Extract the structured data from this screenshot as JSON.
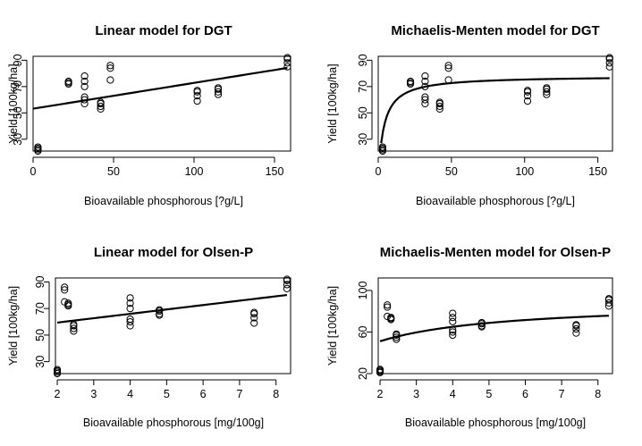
{
  "chart_data": [
    {
      "type": "scatter",
      "title": "Linear model for DGT",
      "xlabel": "Bioavailable phosphorous [?g/L]",
      "ylabel": "Yield [100kg/ha]",
      "xlim": [
        0,
        160
      ],
      "ylim": [
        21,
        93
      ],
      "xticks": [
        0,
        50,
        100,
        150
      ],
      "yticks": [
        30,
        50,
        70,
        90
      ],
      "points": [
        [
          3,
          21
        ],
        [
          3,
          22
        ],
        [
          3,
          23
        ],
        [
          3,
          24
        ],
        [
          22,
          72
        ],
        [
          22,
          73
        ],
        [
          22,
          74
        ],
        [
          32,
          57
        ],
        [
          32,
          60
        ],
        [
          32,
          62
        ],
        [
          32,
          70
        ],
        [
          32,
          74
        ],
        [
          32,
          78
        ],
        [
          42,
          53
        ],
        [
          42,
          55
        ],
        [
          42,
          57
        ],
        [
          42,
          58
        ],
        [
          48,
          75
        ],
        [
          48,
          84
        ],
        [
          48,
          86
        ],
        [
          102,
          59
        ],
        [
          102,
          63
        ],
        [
          102,
          66
        ],
        [
          102,
          67
        ],
        [
          115,
          64
        ],
        [
          115,
          66
        ],
        [
          115,
          68
        ],
        [
          115,
          69
        ],
        [
          158,
          85
        ],
        [
          158,
          88
        ],
        [
          158,
          91
        ],
        [
          158,
          92
        ]
      ],
      "fit": {
        "model": "linear",
        "intercept": 53.2,
        "slope": 0.196,
        "x_range": [
          0,
          158
        ]
      }
    },
    {
      "type": "scatter",
      "title": "Michaelis-Menten model for DGT",
      "xlabel": "Bioavailable phosphorous [?g/L]",
      "ylabel": "Yield [100kg/ha]",
      "xlim": [
        0,
        160
      ],
      "ylim": [
        21,
        93
      ],
      "xticks": [
        0,
        50,
        100,
        150
      ],
      "yticks": [
        30,
        50,
        70,
        90
      ],
      "points": [
        [
          3,
          21
        ],
        [
          3,
          22
        ],
        [
          3,
          23
        ],
        [
          3,
          24
        ],
        [
          22,
          72
        ],
        [
          22,
          73
        ],
        [
          22,
          74
        ],
        [
          32,
          57
        ],
        [
          32,
          60
        ],
        [
          32,
          62
        ],
        [
          32,
          70
        ],
        [
          32,
          74
        ],
        [
          32,
          78
        ],
        [
          42,
          53
        ],
        [
          42,
          55
        ],
        [
          42,
          57
        ],
        [
          42,
          58
        ],
        [
          48,
          75
        ],
        [
          48,
          84
        ],
        [
          48,
          86
        ],
        [
          102,
          59
        ],
        [
          102,
          63
        ],
        [
          102,
          66
        ],
        [
          102,
          67
        ],
        [
          115,
          64
        ],
        [
          115,
          66
        ],
        [
          115,
          68
        ],
        [
          115,
          69
        ],
        [
          158,
          85
        ],
        [
          158,
          88
        ],
        [
          158,
          91
        ],
        [
          158,
          92
        ]
      ],
      "fit": {
        "model": "michaelis-menten",
        "vmax": 78.2,
        "k": 3.8,
        "x_range": [
          2,
          158
        ]
      }
    },
    {
      "type": "scatter",
      "title": "Linear model for Olsen-P",
      "xlabel": "Bioavailable phosphorous [mg/100g]",
      "ylabel": "Yield [100kg/ha]",
      "xlim": [
        1.95,
        8.4
      ],
      "ylim": [
        21,
        93
      ],
      "xticks": [
        2,
        3,
        4,
        5,
        6,
        7,
        8
      ],
      "yticks": [
        30,
        50,
        70,
        90
      ],
      "points": [
        [
          2,
          21
        ],
        [
          2,
          22
        ],
        [
          2,
          23
        ],
        [
          2,
          24
        ],
        [
          2.2,
          84
        ],
        [
          2.2,
          86
        ],
        [
          2.2,
          75
        ],
        [
          2.3,
          72
        ],
        [
          2.3,
          73
        ],
        [
          2.3,
          74
        ],
        [
          2.45,
          53
        ],
        [
          2.45,
          55
        ],
        [
          2.45,
          57
        ],
        [
          2.45,
          58
        ],
        [
          4,
          57
        ],
        [
          4,
          60
        ],
        [
          4,
          62
        ],
        [
          4,
          70
        ],
        [
          4,
          74
        ],
        [
          4,
          78
        ],
        [
          4.8,
          65
        ],
        [
          4.8,
          66
        ],
        [
          4.8,
          68
        ],
        [
          4.8,
          69
        ],
        [
          7.4,
          59
        ],
        [
          7.4,
          63
        ],
        [
          7.4,
          66
        ],
        [
          7.4,
          67
        ],
        [
          8.3,
          85
        ],
        [
          8.3,
          88
        ],
        [
          8.3,
          91
        ],
        [
          8.3,
          92
        ]
      ],
      "fit": {
        "model": "linear",
        "intercept": 52.8,
        "slope": 3.3,
        "x_range": [
          2,
          8.3
        ]
      }
    },
    {
      "type": "scatter",
      "title": "Michaelis-Menten model for Olsen-P",
      "xlabel": "Bioavailable phosphorous [mg/100g]",
      "ylabel": "Yield [100kg/ha]",
      "xlim": [
        1.95,
        8.4
      ],
      "ylim": [
        20,
        112
      ],
      "xticks": [
        2,
        3,
        4,
        5,
        6,
        7,
        8
      ],
      "yticks": [
        20,
        60,
        100
      ],
      "points": [
        [
          2,
          21
        ],
        [
          2,
          22
        ],
        [
          2,
          23
        ],
        [
          2,
          24
        ],
        [
          2.2,
          84
        ],
        [
          2.2,
          86
        ],
        [
          2.2,
          75
        ],
        [
          2.3,
          72
        ],
        [
          2.3,
          73
        ],
        [
          2.3,
          74
        ],
        [
          2.45,
          53
        ],
        [
          2.45,
          55
        ],
        [
          2.45,
          57
        ],
        [
          2.45,
          58
        ],
        [
          4,
          57
        ],
        [
          4,
          60
        ],
        [
          4,
          62
        ],
        [
          4,
          70
        ],
        [
          4,
          74
        ],
        [
          4,
          78
        ],
        [
          4.8,
          65
        ],
        [
          4.8,
          66
        ],
        [
          4.8,
          68
        ],
        [
          4.8,
          69
        ],
        [
          7.4,
          59
        ],
        [
          7.4,
          63
        ],
        [
          7.4,
          66
        ],
        [
          7.4,
          67
        ],
        [
          8.3,
          85
        ],
        [
          8.3,
          88
        ],
        [
          8.3,
          91
        ],
        [
          8.3,
          92
        ]
      ],
      "fit": {
        "model": "michaelis-menten",
        "vmax": 89.4,
        "k": 1.5,
        "x_range": [
          2,
          8.3
        ]
      }
    }
  ]
}
